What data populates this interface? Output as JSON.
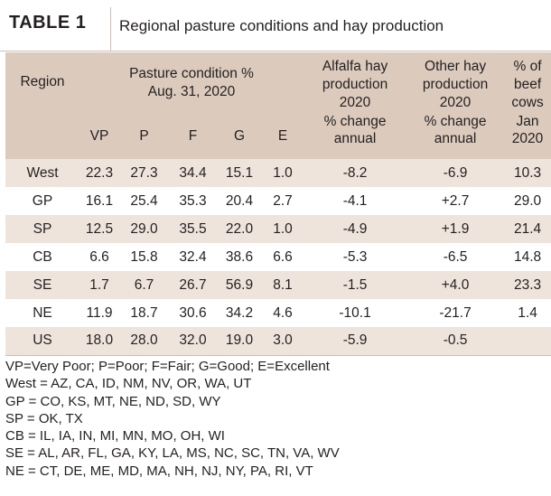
{
  "table": {
    "label": "TABLE 1",
    "title": "Regional pasture conditions and hay production"
  },
  "headers": {
    "region": "Region",
    "pasture_line1": "Pasture condition %",
    "pasture_line2": "Aug. 31, 2020",
    "alfalfa_line1": "Alfalfa hay",
    "alfalfa_line2": "production",
    "alfalfa_line3": "2020",
    "other_line1": "Other hay",
    "other_line2": "production",
    "other_line3": "2020",
    "beef_line1": "% of",
    "beef_line2": "beef",
    "beef_line3": "cows",
    "vp": "VP",
    "p": "P",
    "f": "F",
    "g": "G",
    "e": "E",
    "alfalfa_unit1": "% change",
    "alfalfa_unit2": "annual",
    "other_unit1": "% change",
    "other_unit2": "annual",
    "beef_unit1": "Jan",
    "beef_unit2": "2020"
  },
  "rows": [
    {
      "region": "West",
      "vp": "22.3",
      "p": "27.3",
      "f": "34.4",
      "g": "15.1",
      "e": "1.0",
      "alfalfa": "-8.2",
      "other": "-6.9",
      "beef": "10.3"
    },
    {
      "region": "GP",
      "vp": "16.1",
      "p": "25.4",
      "f": "35.3",
      "g": "20.4",
      "e": "2.7",
      "alfalfa": "-4.1",
      "other": "+2.7",
      "beef": "29.0"
    },
    {
      "region": "SP",
      "vp": "12.5",
      "p": "29.0",
      "f": "35.5",
      "g": "22.0",
      "e": "1.0",
      "alfalfa": "-4.9",
      "other": "+1.9",
      "beef": "21.4"
    },
    {
      "region": "CB",
      "vp": "6.6",
      "p": "15.8",
      "f": "32.4",
      "g": "38.6",
      "e": "6.6",
      "alfalfa": "-5.3",
      "other": "-6.5",
      "beef": "14.8"
    },
    {
      "region": "SE",
      "vp": "1.7",
      "p": "6.7",
      "f": "26.7",
      "g": "56.9",
      "e": "8.1",
      "alfalfa": "-1.5",
      "other": "+4.0",
      "beef": "23.3"
    },
    {
      "region": "NE",
      "vp": "11.9",
      "p": "18.7",
      "f": "30.6",
      "g": "34.2",
      "e": "4.6",
      "alfalfa": "-10.1",
      "other": "-21.7",
      "beef": "1.4"
    },
    {
      "region": "US",
      "vp": "18.0",
      "p": "28.0",
      "f": "32.0",
      "g": "19.0",
      "e": "3.0",
      "alfalfa": "-5.9",
      "other": "-0.5",
      "beef": ""
    }
  ],
  "notes": [
    "VP=Very Poor; P=Poor; F=Fair; G=Good; E=Excellent",
    "West = AZ, CA, ID, NM, NV, OR, WA, UT",
    "GP = CO, KS, MT, NE, ND, SD, WY",
    "SP = OK, TX",
    "CB = IL, IA, IN, MI, MN, MO, OH, WI",
    "SE = AL, AR, FL, GA, KY, LA, MS, NC, SC, TN, VA, WV",
    "NE = CT, DE, ME, MD, MA, NH, NJ, NY, PA, RI, VT"
  ],
  "colors": {
    "header_bg": "#dccbbd",
    "stripe_bg": "#efe4dc",
    "divider": "#c9bfb6"
  }
}
